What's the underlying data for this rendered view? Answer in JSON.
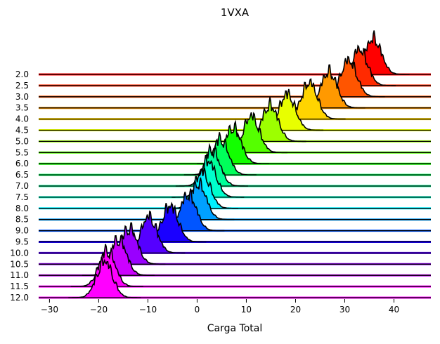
{
  "chart_data": {
    "type": "area",
    "subtype": "ridgeline",
    "title": "1VXA",
    "xlabel": "Carga Total",
    "ylabel": "",
    "xlim": [
      -32.2,
      47.5
    ],
    "xticks": [
      "−30",
      "−20",
      "−10",
      "0",
      "10",
      "20",
      "30",
      "40"
    ],
    "xtick_values": [
      -30,
      -20,
      -10,
      0,
      10,
      20,
      30,
      40
    ],
    "grid": false,
    "ridges": [
      {
        "label": "2.0",
        "peak_x": 35.8,
        "color": "#ff0000"
      },
      {
        "label": "2.5",
        "peak_x": 33.0,
        "color": "#ff2a00"
      },
      {
        "label": "3.0",
        "peak_x": 30.8,
        "color": "#ff5500"
      },
      {
        "label": "3.5",
        "peak_x": 26.8,
        "color": "#ff9900"
      },
      {
        "label": "4.0",
        "peak_x": 22.8,
        "color": "#ffd400"
      },
      {
        "label": "4.5",
        "peak_x": 18.3,
        "color": "#e8ff00"
      },
      {
        "label": "5.0",
        "peak_x": 14.8,
        "color": "#9dff00"
      },
      {
        "label": "5.5",
        "peak_x": 11.0,
        "color": "#55ff00"
      },
      {
        "label": "6.0",
        "peak_x": 7.3,
        "color": "#13ff00"
      },
      {
        "label": "6.5",
        "peak_x": 4.7,
        "color": "#00ff5a"
      },
      {
        "label": "7.0",
        "peak_x": 3.0,
        "color": "#00ff99"
      },
      {
        "label": "7.5",
        "peak_x": 2.2,
        "color": "#00ffcc"
      },
      {
        "label": "8.0",
        "peak_x": 1.0,
        "color": "#00f0ff"
      },
      {
        "label": "8.5",
        "peak_x": 0.2,
        "color": "#00a0ff"
      },
      {
        "label": "9.0",
        "peak_x": -1.8,
        "color": "#0055ff"
      },
      {
        "label": "9.5",
        "peak_x": -5.5,
        "color": "#1a00ff"
      },
      {
        "label": "10.0",
        "peak_x": -9.8,
        "color": "#5500ff"
      },
      {
        "label": "10.5",
        "peak_x": -13.8,
        "color": "#9900ff"
      },
      {
        "label": "11.0",
        "peak_x": -16.0,
        "color": "#cc00ff"
      },
      {
        "label": "11.5",
        "peak_x": -18.3,
        "color": "#ff00ff"
      },
      {
        "label": "12.0",
        "peak_x": -18.8,
        "color": "#ff00ff"
      }
    ]
  }
}
